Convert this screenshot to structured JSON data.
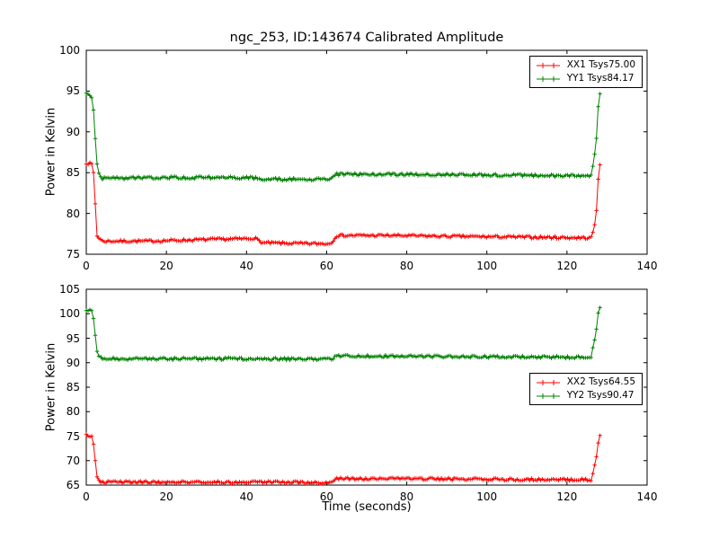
{
  "chart_data": [
    {
      "type": "line",
      "title": "ngc_253, ID:143674 Calibrated Amplitude",
      "xlabel": "",
      "ylabel": "Power in Kelvin",
      "xlim": [
        0,
        140
      ],
      "ylim": [
        75,
        100
      ],
      "xticks": [
        0,
        20,
        40,
        60,
        80,
        100,
        120,
        140
      ],
      "yticks": [
        75,
        80,
        85,
        90,
        95,
        100
      ],
      "grid": false,
      "legend_position": "upper right",
      "series": [
        {
          "name": "XX1",
          "label": "XX1 Tsys75.00",
          "color": "#ff0000",
          "marker": "+",
          "noise": 0.15,
          "keypoints": [
            [
              0,
              86.2
            ],
            [
              1.6,
              86.0
            ],
            [
              2.0,
              84.0
            ],
            [
              2.6,
              77.3
            ],
            [
              4,
              76.6
            ],
            [
              15,
              76.6
            ],
            [
              30,
              76.8
            ],
            [
              40,
              76.9
            ],
            [
              42,
              77.0
            ],
            [
              44,
              76.4
            ],
            [
              55,
              76.3
            ],
            [
              61,
              76.3
            ],
            [
              62.5,
              77.3
            ],
            [
              75,
              77.3
            ],
            [
              90,
              77.2
            ],
            [
              110,
              77.1
            ],
            [
              126,
              77.0
            ],
            [
              127.2,
              79.0
            ],
            [
              128.0,
              86.0
            ],
            [
              128.6,
              86.2
            ]
          ]
        },
        {
          "name": "YY1",
          "label": "YY1 Tsys84.17",
          "color": "#008000",
          "marker": "+",
          "noise": 0.16,
          "keypoints": [
            [
              0,
              94.6
            ],
            [
              1.6,
              94.2
            ],
            [
              2.8,
              85.2
            ],
            [
              4,
              84.3
            ],
            [
              20,
              84.4
            ],
            [
              40,
              84.4
            ],
            [
              45,
              84.2
            ],
            [
              61,
              84.2
            ],
            [
              62.5,
              84.8
            ],
            [
              80,
              84.8
            ],
            [
              100,
              84.7
            ],
            [
              126,
              84.6
            ],
            [
              127.2,
              88.0
            ],
            [
              128.0,
              94.6
            ],
            [
              128.6,
              95.1
            ]
          ]
        }
      ]
    },
    {
      "type": "line",
      "title": "",
      "xlabel": "Time (seconds)",
      "ylabel": "Power in Kelvin",
      "xlim": [
        0,
        140
      ],
      "ylim": [
        65,
        105
      ],
      "xticks": [
        0,
        20,
        40,
        60,
        80,
        100,
        120,
        140
      ],
      "yticks": [
        65,
        70,
        75,
        80,
        85,
        90,
        95,
        100,
        105
      ],
      "grid": false,
      "legend_position": "center right",
      "series": [
        {
          "name": "XX2",
          "label": "XX2 Tsys64.55",
          "color": "#ff0000",
          "marker": "+",
          "noise": 0.25,
          "keypoints": [
            [
              0,
              75.2
            ],
            [
              1.6,
              75.0
            ],
            [
              2.8,
              66.2
            ],
            [
              4,
              65.6
            ],
            [
              20,
              65.6
            ],
            [
              40,
              65.6
            ],
            [
              61,
              65.5
            ],
            [
              62.5,
              66.3
            ],
            [
              80,
              66.3
            ],
            [
              100,
              66.2
            ],
            [
              126,
              66.1
            ],
            [
              127.2,
              70.0
            ],
            [
              128.0,
              75.0
            ],
            [
              128.6,
              75.3
            ]
          ]
        },
        {
          "name": "YY2",
          "label": "YY2 Tsys90.47",
          "color": "#008000",
          "marker": "+",
          "noise": 0.25,
          "keypoints": [
            [
              0,
              100.9
            ],
            [
              1.6,
              100.7
            ],
            [
              2.8,
              91.5
            ],
            [
              4,
              90.8
            ],
            [
              20,
              90.8
            ],
            [
              40,
              90.8
            ],
            [
              61,
              90.7
            ],
            [
              62.5,
              91.4
            ],
            [
              80,
              91.3
            ],
            [
              100,
              91.2
            ],
            [
              126,
              91.1
            ],
            [
              127.2,
              96.0
            ],
            [
              128.0,
              101.2
            ],
            [
              128.6,
              101.5
            ]
          ]
        }
      ]
    }
  ]
}
